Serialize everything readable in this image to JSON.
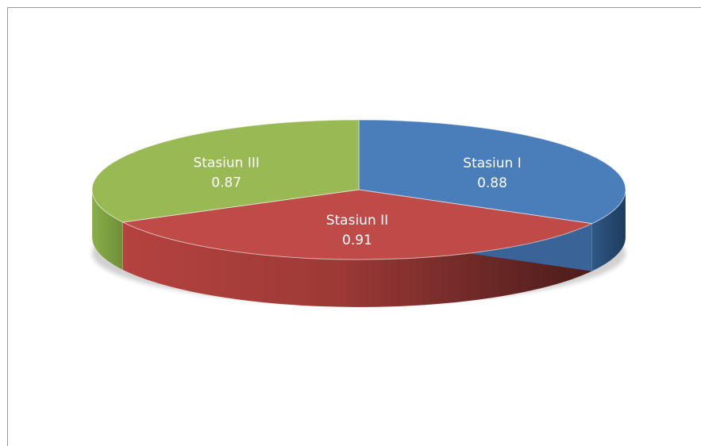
{
  "chart_data": {
    "type": "pie",
    "style": "3d",
    "slices": [
      {
        "label": "Stasiun I",
        "value": 0.88,
        "color": "#4a7ebb"
      },
      {
        "label": "Stasiun II",
        "value": 0.91,
        "color": "#be4b48"
      },
      {
        "label": "Stasiun III",
        "value": 0.87,
        "color": "#98b954"
      }
    ],
    "data_labels": true
  }
}
